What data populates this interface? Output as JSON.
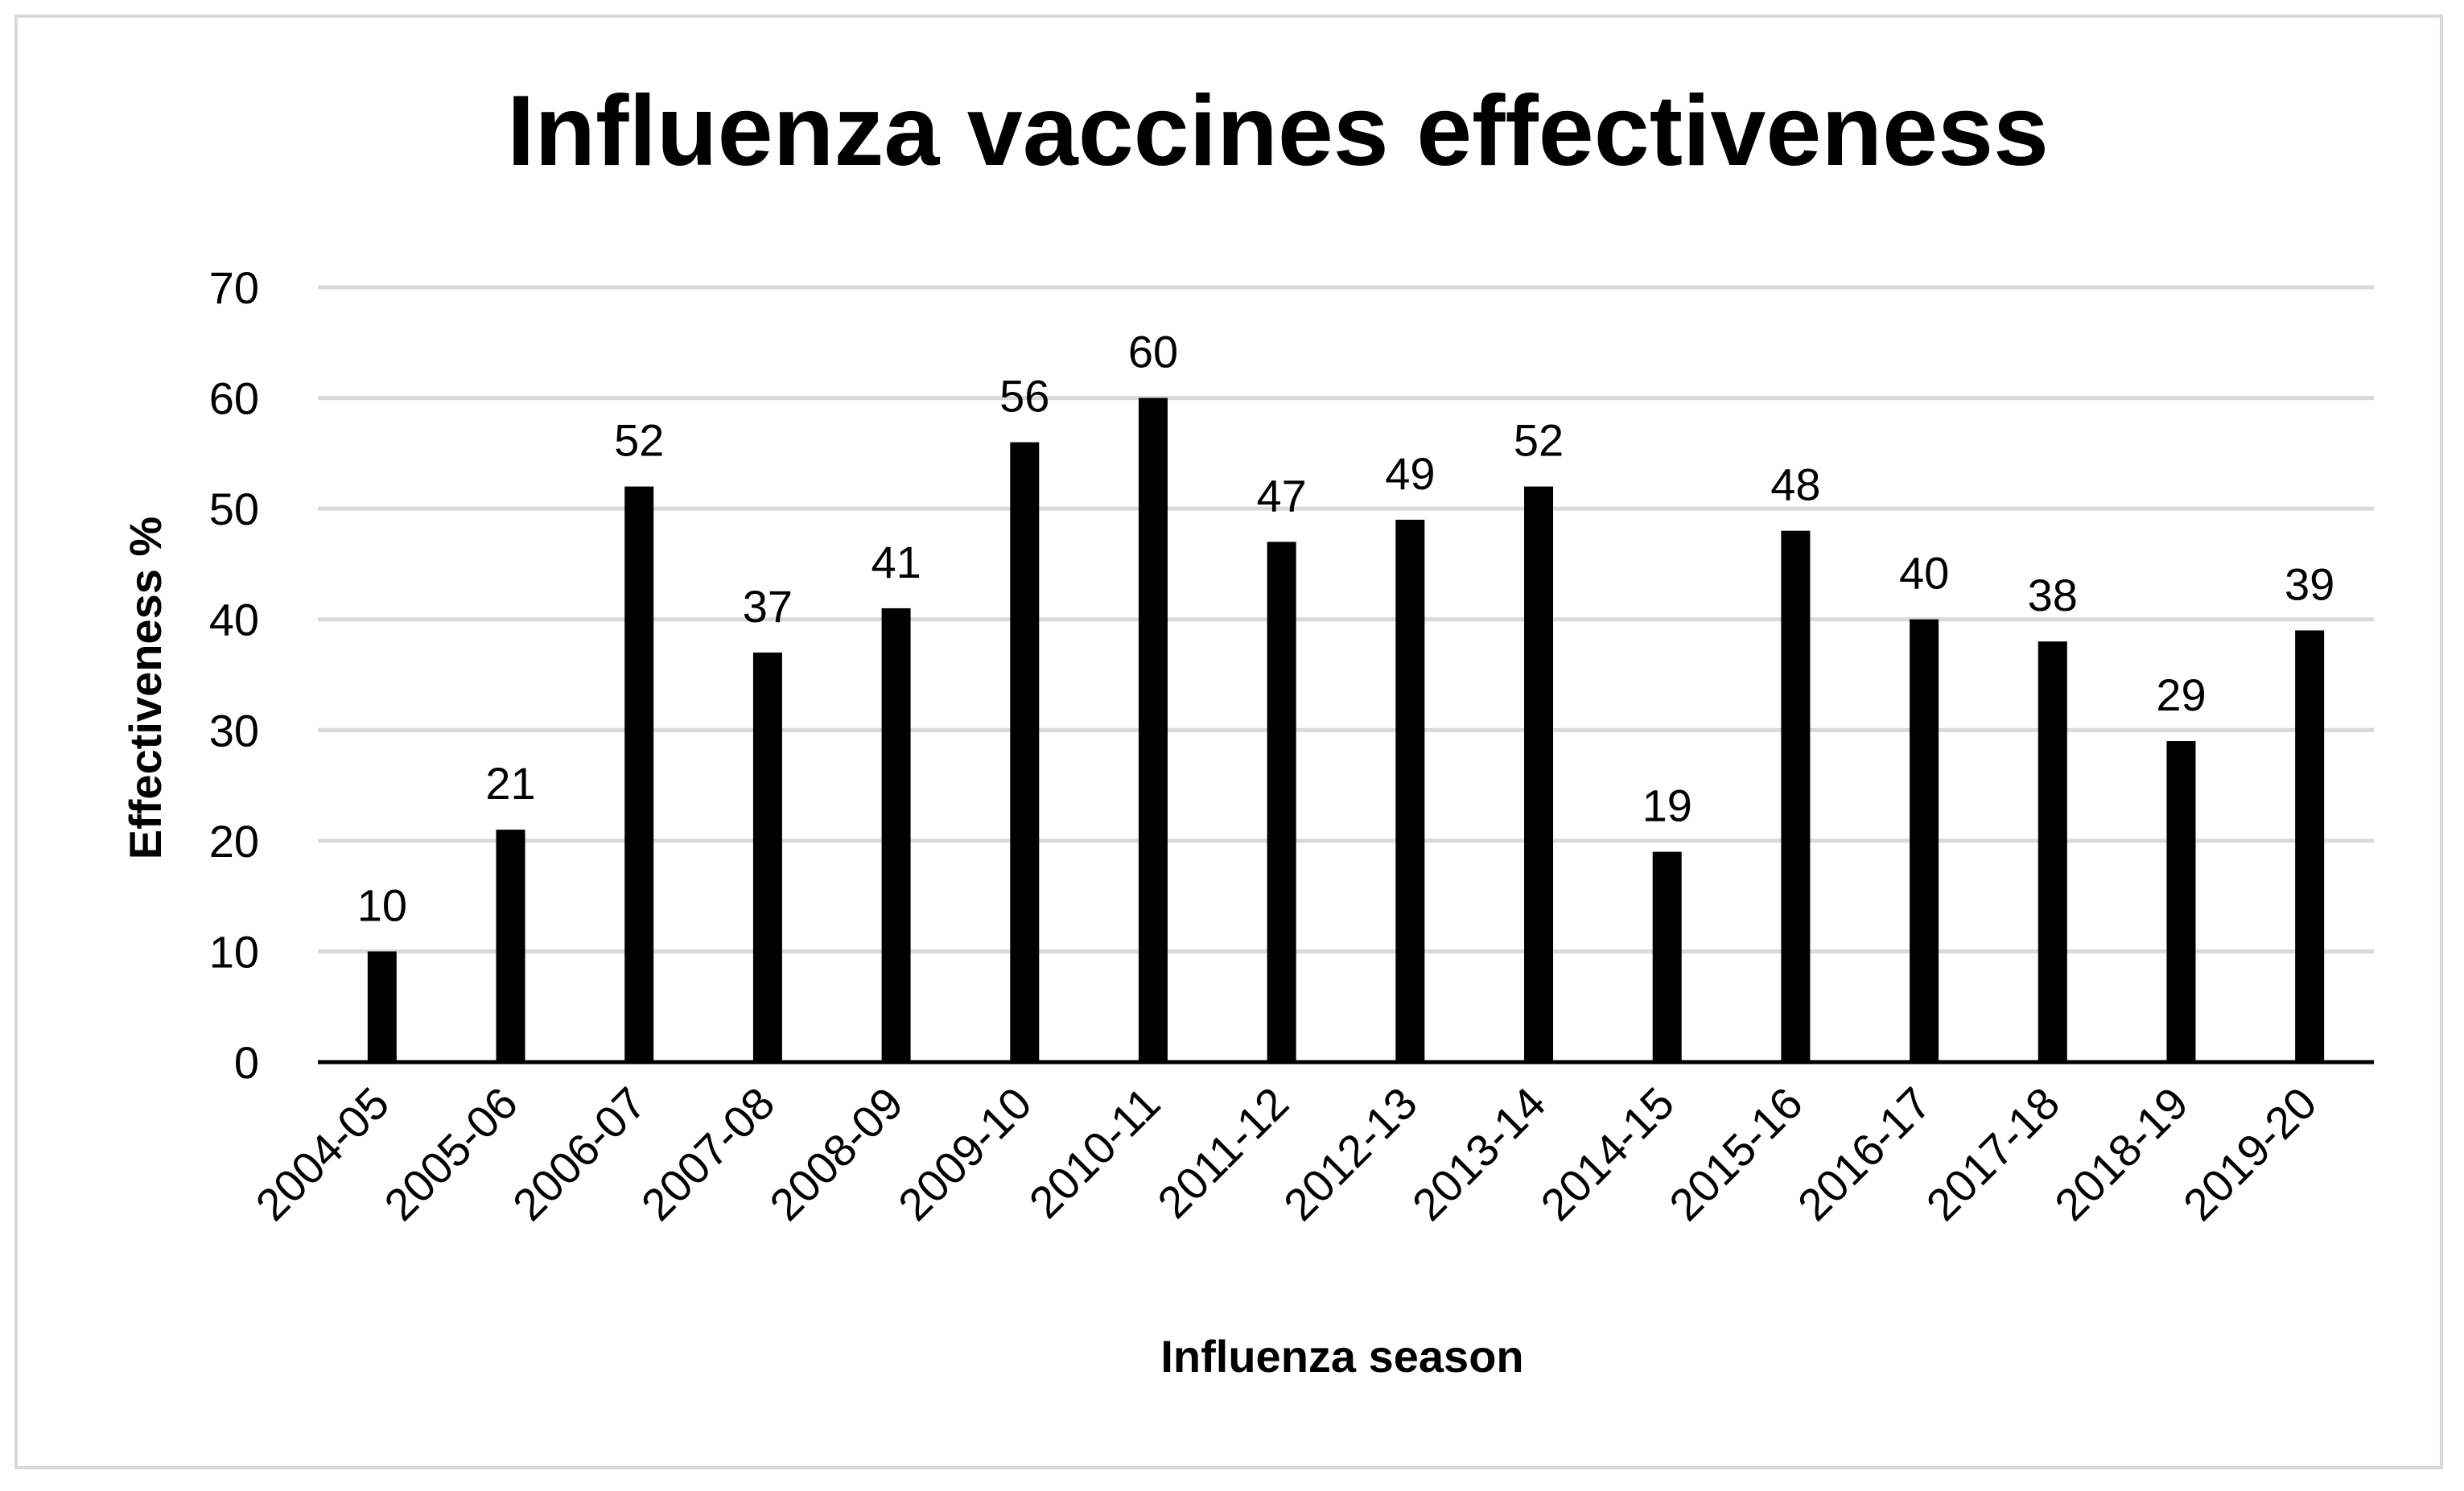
{
  "chart_data": {
    "type": "bar",
    "title": "Influenza vaccines effectiveness",
    "xlabel": "Influenza season",
    "ylabel": "Effectiveness %",
    "ylim": [
      0,
      70
    ],
    "yticks": [
      0,
      10,
      20,
      30,
      40,
      50,
      60,
      70
    ],
    "grid": true,
    "legend": "none",
    "categories": [
      "2004-05",
      "2005-06",
      "2006-07",
      "2007-08",
      "2008-09",
      "2009-10",
      "2010-11",
      "2011-12",
      "2012-13",
      "2013-14",
      "2014-15",
      "2015-16",
      "2016-17",
      "2017-18",
      "2018-19",
      "2019-20"
    ],
    "series": [
      {
        "name": "Effectiveness %",
        "values": [
          10,
          21,
          52,
          37,
          41,
          56,
          60,
          47,
          49,
          52,
          19,
          48,
          40,
          38,
          29,
          39
        ]
      }
    ],
    "colors": {
      "bar": "#000000",
      "grid": "#d9d9d9",
      "axis": "#000000"
    }
  }
}
